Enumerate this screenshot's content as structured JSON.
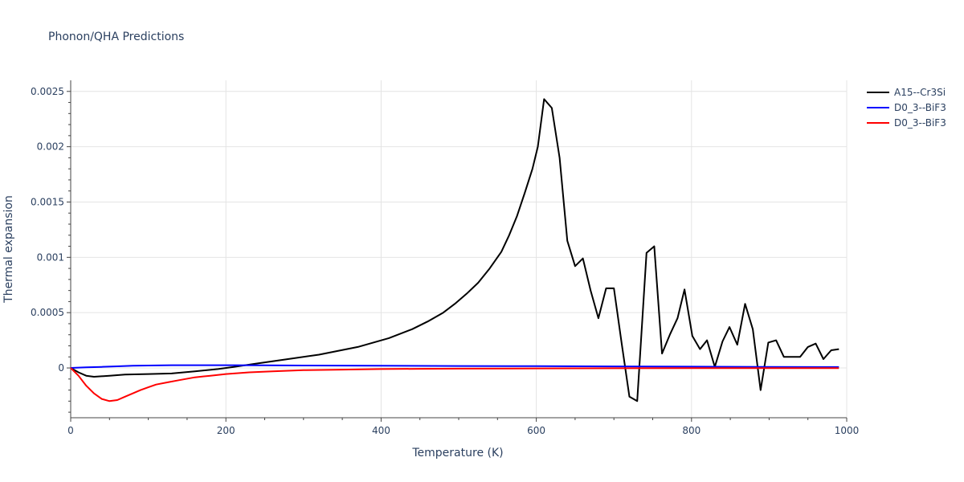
{
  "chart_data": {
    "type": "line",
    "title": "Phonon/QHA Predictions",
    "xlabel": "Temperature (K)",
    "ylabel": "Thermal expansion",
    "xlim": [
      0,
      1000
    ],
    "ylim": [
      -0.00045,
      0.0026
    ],
    "xticks": [
      0,
      200,
      400,
      600,
      800,
      1000
    ],
    "xtick_labels": [
      "0",
      "200",
      "400",
      "600",
      "800",
      "1000"
    ],
    "yticks": [
      0,
      0.0005,
      0.001,
      0.0015,
      0.002,
      0.0025
    ],
    "ytick_labels": [
      "0",
      "0.0005",
      "0.001",
      "0.0015",
      "0.002",
      "0.0025"
    ],
    "grid": true,
    "legend_position": "top-right",
    "series": [
      {
        "name": "A15--Cr3Si",
        "color": "#000000",
        "x": [
          0,
          10,
          20,
          30,
          50,
          70,
          100,
          130,
          160,
          190,
          210,
          240,
          280,
          320,
          370,
          410,
          440,
          460,
          480,
          495,
          510,
          525,
          540,
          555,
          565,
          575,
          585,
          595,
          602,
          610,
          620,
          630,
          640,
          650,
          660,
          670,
          680,
          690,
          700,
          710,
          720,
          730,
          742,
          752,
          762,
          772,
          782,
          791,
          801,
          811,
          820,
          830,
          840,
          849,
          859,
          869,
          879,
          889,
          899,
          909,
          919,
          929,
          940,
          950,
          960,
          970,
          980,
          990
        ],
        "y": [
          0,
          -4e-05,
          -7e-05,
          -8e-05,
          -7e-05,
          -6e-05,
          -5.5e-05,
          -5e-05,
          -3e-05,
          -1e-05,
          1e-05,
          4e-05,
          8e-05,
          0.00012,
          0.00019,
          0.00027,
          0.00035,
          0.00042,
          0.0005,
          0.00058,
          0.00067,
          0.00077,
          0.0009,
          0.00105,
          0.0012,
          0.00137,
          0.00158,
          0.0018,
          0.002,
          0.00243,
          0.00235,
          0.0019,
          0.00115,
          0.00092,
          0.00099,
          0.0007,
          0.00045,
          0.00072,
          0.00072,
          0.00022,
          -0.00026,
          -0.0003,
          0.00104,
          0.0011,
          0.00013,
          0.0003,
          0.00045,
          0.00071,
          0.00029,
          0.00017,
          0.00025,
          1e-05,
          0.00024,
          0.00037,
          0.00021,
          0.00058,
          0.00035,
          -0.0002,
          0.00023,
          0.00025,
          0.0001,
          0.0001,
          0.0001,
          0.00019,
          0.00022,
          8e-05,
          0.00016,
          0.00017
        ]
      },
      {
        "name": "D0_3--BiF3",
        "color": "#0000ff",
        "x": [
          0,
          20,
          40,
          60,
          80,
          100,
          130,
          160,
          200,
          250,
          300,
          400,
          500,
          600,
          700,
          800,
          900,
          990
        ],
        "y": [
          0,
          5e-06,
          1e-05,
          1.5e-05,
          2e-05,
          2.2e-05,
          2.5e-05,
          2.5e-05,
          2.5e-05,
          2.4e-05,
          2.2e-05,
          2e-05,
          1.8e-05,
          1.6e-05,
          1.4e-05,
          1.2e-05,
          1e-05,
          8e-06
        ]
      },
      {
        "name": "D0_3--BiF3",
        "color": "#ff0000",
        "x": [
          0,
          10,
          20,
          30,
          40,
          50,
          60,
          70,
          80,
          90,
          100,
          110,
          125,
          140,
          160,
          180,
          200,
          230,
          260,
          300,
          350,
          400,
          450,
          500,
          600,
          700,
          800,
          900,
          990
        ],
        "y": [
          0,
          -7e-05,
          -0.00016,
          -0.00023,
          -0.00028,
          -0.0003,
          -0.00029,
          -0.00026,
          -0.00023,
          -0.0002,
          -0.000175,
          -0.00015,
          -0.00013,
          -0.00011,
          -8.5e-05,
          -7e-05,
          -5.5e-05,
          -4e-05,
          -3e-05,
          -2e-05,
          -1.5e-05,
          -1e-05,
          -8e-06,
          -6e-06,
          -4e-06,
          -3e-06,
          -2e-06,
          -2e-06,
          -1e-06
        ]
      }
    ]
  }
}
